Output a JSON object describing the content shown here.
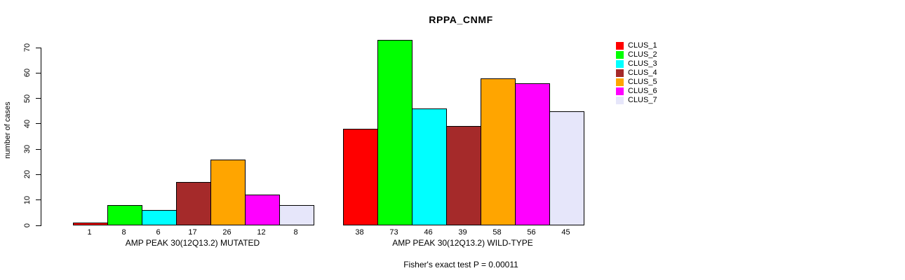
{
  "chart_data": {
    "type": "bar",
    "title": "RPPA_CNMF",
    "xlabel": "",
    "ylabel": "number of cases",
    "ylim": [
      0,
      70
    ],
    "ytick_step": 10,
    "grid": false,
    "legend_position": "right",
    "legend": [
      {
        "label": "CLUS_1",
        "color": "#FF0000"
      },
      {
        "label": "CLUS_2",
        "color": "#00FF00"
      },
      {
        "label": "CLUS_3",
        "color": "#00FFFF"
      },
      {
        "label": "CLUS_4",
        "color": "#A52A2A"
      },
      {
        "label": "CLUS_5",
        "color": "#FFA500"
      },
      {
        "label": "CLUS_6",
        "color": "#FF00FF"
      },
      {
        "label": "CLUS_7",
        "color": "#E6E6FA"
      }
    ],
    "groups": [
      {
        "label": "AMP PEAK 30(12Q13.2) MUTATED",
        "values": [
          1,
          8,
          6,
          17,
          26,
          12,
          8
        ]
      },
      {
        "label": "AMP PEAK 30(12Q13.2) WILD-TYPE",
        "values": [
          38,
          73,
          46,
          39,
          58,
          56,
          45
        ]
      }
    ],
    "footnote": "Fisher's exact test P = 0.00011"
  }
}
